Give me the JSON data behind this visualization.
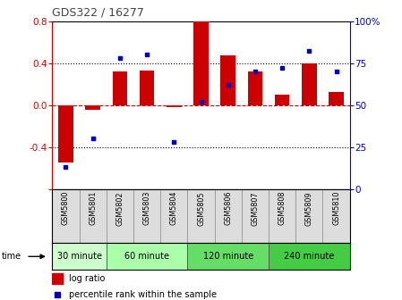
{
  "title": "GDS322 / 16277",
  "samples": [
    "GSM5800",
    "GSM5801",
    "GSM5802",
    "GSM5803",
    "GSM5804",
    "GSM5805",
    "GSM5806",
    "GSM5807",
    "GSM5808",
    "GSM5809",
    "GSM5810"
  ],
  "log_ratio": [
    -0.55,
    -0.05,
    0.32,
    0.33,
    -0.02,
    0.8,
    0.47,
    0.32,
    0.1,
    0.4,
    0.12
  ],
  "percentile": [
    13,
    30,
    78,
    80,
    28,
    52,
    62,
    70,
    72,
    82,
    70
  ],
  "ylim_left": [
    -0.8,
    0.8
  ],
  "ylim_right": [
    0,
    100
  ],
  "left_ticks": [
    -0.8,
    -0.4,
    0.0,
    0.4,
    0.8
  ],
  "right_ticks": [
    0,
    25,
    50,
    75,
    100
  ],
  "bar_color": "#cc0000",
  "dot_color": "#0000cc",
  "zero_line_color": "#cc0000",
  "groups": [
    {
      "label": "30 minute",
      "start": 0,
      "end": 2,
      "color": "#ccffcc"
    },
    {
      "label": "60 minute",
      "start": 2,
      "end": 5,
      "color": "#aaffaa"
    },
    {
      "label": "120 minute",
      "start": 5,
      "end": 8,
      "color": "#66dd66"
    },
    {
      "label": "240 minute",
      "start": 8,
      "end": 11,
      "color": "#44cc44"
    }
  ],
  "legend_bar_label": "log ratio",
  "legend_dot_label": "percentile rank within the sample",
  "time_label": "time",
  "background_color": "#ffffff"
}
